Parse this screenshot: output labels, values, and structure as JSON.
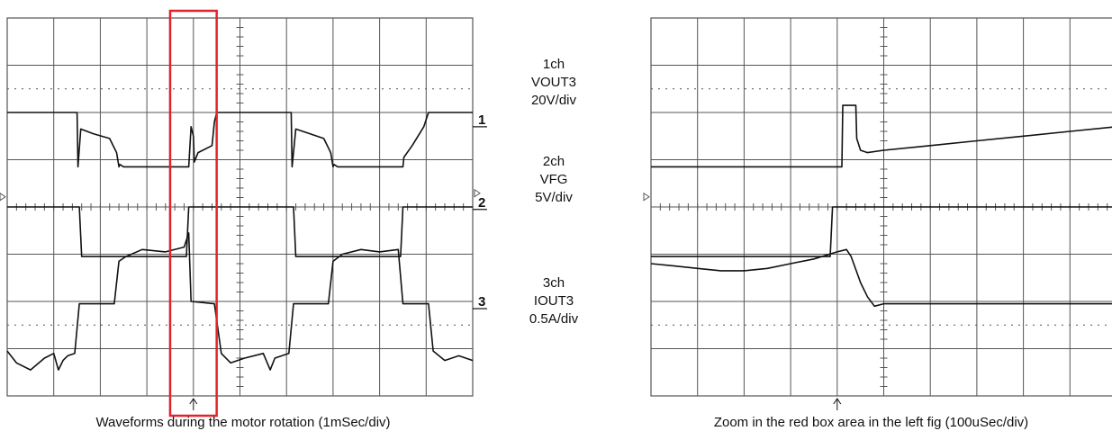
{
  "chart_data": [
    {
      "type": "line",
      "caption": "Waveforms during the motor rotation (1mSec/div)",
      "xdiv": 10,
      "ydiv": 8,
      "grid": true,
      "highlight_box_x": [
        3.5,
        4.5
      ],
      "highlight_color": "#e0242c",
      "trigger_marker_x": 4.0,
      "series": [
        {
          "name": "1",
          "marker_y": 2.15,
          "waveform": [
            [
              0.0,
              2.0
            ],
            [
              1.5,
              2.0
            ],
            [
              1.52,
              3.15
            ],
            [
              1.58,
              2.35
            ],
            [
              1.85,
              2.45
            ],
            [
              2.2,
              2.55
            ],
            [
              2.35,
              2.85
            ],
            [
              2.4,
              3.15
            ],
            [
              2.42,
              3.1
            ],
            [
              2.5,
              3.15
            ],
            [
              3.9,
              3.15
            ],
            [
              3.95,
              2.3
            ],
            [
              4.0,
              2.5
            ],
            [
              4.02,
              3.05
            ],
            [
              4.1,
              2.85
            ],
            [
              4.4,
              2.7
            ],
            [
              4.45,
              2.2
            ],
            [
              4.5,
              2.0
            ],
            [
              6.1,
              2.0
            ],
            [
              6.12,
              3.15
            ],
            [
              6.2,
              2.35
            ],
            [
              6.5,
              2.45
            ],
            [
              6.8,
              2.55
            ],
            [
              6.95,
              2.85
            ],
            [
              7.0,
              3.15
            ],
            [
              7.02,
              3.1
            ],
            [
              7.1,
              3.15
            ],
            [
              8.5,
              3.15
            ],
            [
              8.52,
              2.95
            ],
            [
              8.7,
              2.7
            ],
            [
              8.95,
              2.3
            ],
            [
              9.05,
              2.0
            ],
            [
              10.0,
              2.0
            ]
          ]
        },
        {
          "name": "2",
          "marker_y": 3.9,
          "waveform": [
            [
              0.0,
              4.0
            ],
            [
              1.55,
              4.0
            ],
            [
              1.6,
              5.05
            ],
            [
              3.85,
              5.05
            ],
            [
              3.9,
              4.0
            ],
            [
              6.15,
              4.0
            ],
            [
              6.2,
              5.05
            ],
            [
              8.45,
              5.05
            ],
            [
              8.5,
              4.0
            ],
            [
              10.0,
              4.0
            ]
          ]
        },
        {
          "name": "3",
          "marker_y": 6.0,
          "waveform": [
            [
              0.0,
              7.05
            ],
            [
              0.2,
              7.3
            ],
            [
              0.5,
              7.45
            ],
            [
              0.8,
              7.2
            ],
            [
              1.0,
              7.1
            ],
            [
              1.1,
              7.45
            ],
            [
              1.2,
              7.25
            ],
            [
              1.3,
              7.15
            ],
            [
              1.45,
              7.1
            ],
            [
              1.55,
              6.05
            ],
            [
              2.3,
              6.05
            ],
            [
              2.4,
              5.15
            ],
            [
              2.55,
              5.05
            ],
            [
              2.9,
              4.9
            ],
            [
              3.4,
              4.95
            ],
            [
              3.8,
              4.85
            ],
            [
              3.9,
              4.55
            ],
            [
              3.95,
              6.0
            ],
            [
              4.45,
              6.05
            ],
            [
              4.6,
              7.1
            ],
            [
              4.8,
              7.3
            ],
            [
              5.1,
              7.2
            ],
            [
              5.5,
              7.1
            ],
            [
              5.65,
              7.45
            ],
            [
              5.75,
              7.2
            ],
            [
              6.05,
              7.1
            ],
            [
              6.15,
              6.05
            ],
            [
              6.9,
              6.05
            ],
            [
              7.0,
              5.15
            ],
            [
              7.2,
              5.0
            ],
            [
              7.6,
              4.9
            ],
            [
              8.0,
              4.95
            ],
            [
              8.4,
              4.9
            ],
            [
              8.5,
              6.05
            ],
            [
              9.05,
              6.05
            ],
            [
              9.15,
              7.05
            ],
            [
              9.4,
              7.25
            ],
            [
              9.7,
              7.15
            ],
            [
              10.0,
              7.25
            ]
          ]
        }
      ]
    },
    {
      "type": "line",
      "caption": "Zoom in the red box area in the left fig (100uSec/div)",
      "xdiv": 10,
      "ydiv": 8,
      "grid": true,
      "trigger_marker_x": 4.0,
      "series": [
        {
          "name": "1",
          "marker_y": 2.15,
          "waveform": [
            [
              0.0,
              3.15
            ],
            [
              4.1,
              3.15
            ],
            [
              4.12,
              1.85
            ],
            [
              4.4,
              1.85
            ],
            [
              4.42,
              2.55
            ],
            [
              4.5,
              2.8
            ],
            [
              4.65,
              2.85
            ],
            [
              5.0,
              2.8
            ],
            [
              6.0,
              2.7
            ],
            [
              7.0,
              2.6
            ],
            [
              8.0,
              2.5
            ],
            [
              9.0,
              2.4
            ],
            [
              10.0,
              2.3
            ]
          ]
        },
        {
          "name": "2",
          "marker_y": 3.9,
          "waveform": [
            [
              0.0,
              5.05
            ],
            [
              3.85,
              5.05
            ],
            [
              3.9,
              4.0
            ],
            [
              10.0,
              4.0
            ]
          ]
        },
        {
          "name": "3",
          "marker_y": 6.0,
          "waveform": [
            [
              0.0,
              5.2
            ],
            [
              0.5,
              5.25
            ],
            [
              1.0,
              5.3
            ],
            [
              1.5,
              5.35
            ],
            [
              2.0,
              5.35
            ],
            [
              2.5,
              5.3
            ],
            [
              3.0,
              5.2
            ],
            [
              3.5,
              5.1
            ],
            [
              4.0,
              4.95
            ],
            [
              4.2,
              4.9
            ],
            [
              4.3,
              5.05
            ],
            [
              4.5,
              5.6
            ],
            [
              4.65,
              5.9
            ],
            [
              4.8,
              6.1
            ],
            [
              5.0,
              6.05
            ],
            [
              6.0,
              6.05
            ],
            [
              7.0,
              6.05
            ],
            [
              8.0,
              6.05
            ],
            [
              9.0,
              6.05
            ],
            [
              10.0,
              6.05
            ]
          ]
        }
      ]
    }
  ],
  "channel_labels": [
    {
      "channel": "1ch",
      "signal": "VOUT3",
      "scale": "20V/div"
    },
    {
      "channel": "2ch",
      "signal": "VFG",
      "scale": "5V/div"
    },
    {
      "channel": "3ch",
      "signal": "IOUT3",
      "scale": "0.5A/div"
    }
  ],
  "colors": {
    "grid": "#555555",
    "trace": "#111111",
    "highlight": "#e0242c"
  },
  "icons": {
    "trigger": "up-arrow-icon",
    "ground_marker": "left-triangle-icon",
    "ground_marker_right": "right-triangle-icon"
  }
}
